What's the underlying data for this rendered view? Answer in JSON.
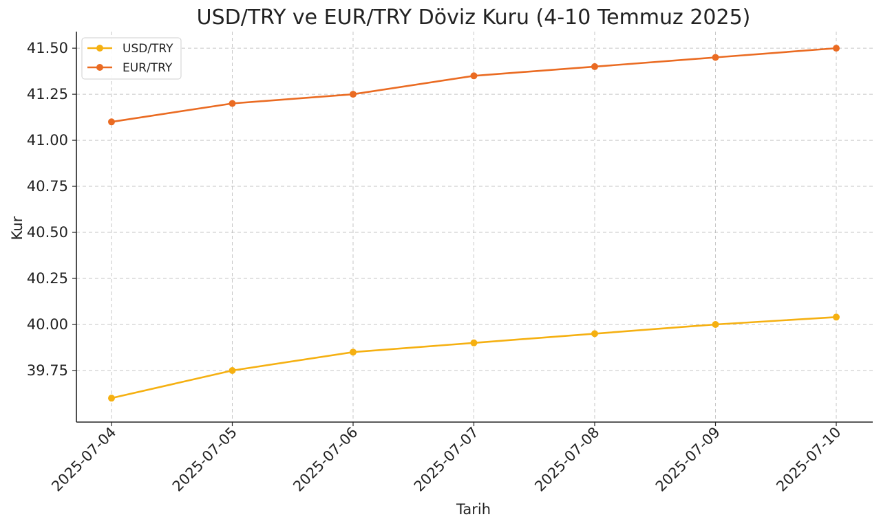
{
  "chart_data": {
    "type": "line",
    "title": "USD/TRY ve EUR/TRY Döviz Kuru (4-10 Temmuz 2025)",
    "xlabel": "Tarih",
    "ylabel": "Kur",
    "x": [
      "2025-07-04",
      "2025-07-05",
      "2025-07-06",
      "2025-07-07",
      "2025-07-08",
      "2025-07-09",
      "2025-07-10"
    ],
    "ylim": [
      39.47,
      41.59
    ],
    "yticks": [
      "39.75",
      "40.00",
      "40.25",
      "40.50",
      "40.75",
      "41.00",
      "41.25",
      "41.50"
    ],
    "grid": true,
    "legend_position": "top-left",
    "series": [
      {
        "name": "USD/TRY",
        "color": "#f5b011",
        "values": [
          39.6,
          39.75,
          39.85,
          39.9,
          39.95,
          40.0,
          40.04
        ]
      },
      {
        "name": "EUR/TRY",
        "color": "#ea6b22",
        "values": [
          41.1,
          41.2,
          41.25,
          41.35,
          41.4,
          41.45,
          41.5
        ]
      }
    ]
  }
}
